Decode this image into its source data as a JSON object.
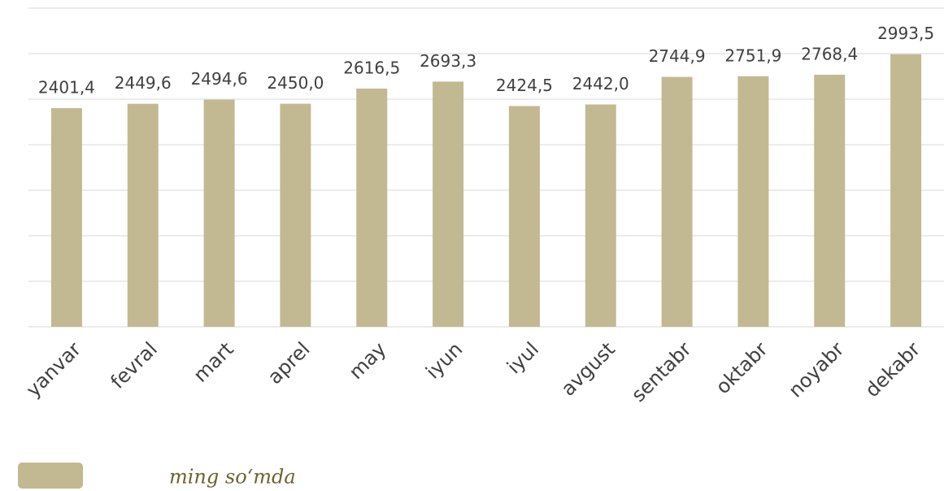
{
  "chart_data": {
    "type": "bar",
    "categories": [
      "yanvar",
      "fevral",
      "mart",
      "aprel",
      "may",
      "iyun",
      "iyul",
      "avgust",
      "sentabr",
      "oktabr",
      "noyabr",
      "dekabr"
    ],
    "series": [
      {
        "name": "ming so‘mda",
        "color": "#c2b993",
        "values": [
          2401.4,
          2449.6,
          2494.6,
          2450.0,
          2616.5,
          2693.3,
          2424.5,
          2442.0,
          2744.9,
          2751.9,
          2768.4,
          2993.5
        ],
        "value_labels": [
          "2401,4",
          "2449,6",
          "2494,6",
          "2450,0",
          "2616,5",
          "2693,3",
          "2424,5",
          "2442,0",
          "2744,9",
          "2751,9",
          "2768,4",
          "2993,5"
        ]
      }
    ],
    "ylim": [
      0,
      3500
    ],
    "yticks": [
      0,
      500,
      1000,
      1500,
      2000,
      2500,
      3000,
      3500
    ],
    "grid": true
  }
}
